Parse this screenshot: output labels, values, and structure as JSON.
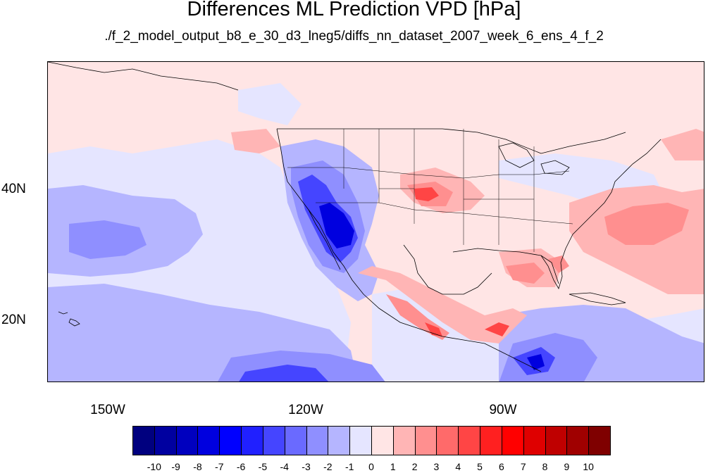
{
  "title": "Differences ML Prediction VPD [hPa]",
  "subtitle": "./f_2_model_output_b8_e_30_d3_lneg5/diffs_nn_dataset_2007_week_6_ens_4_f_2",
  "map": {
    "projection": "cylindrical equidistant",
    "lon_range": [
      -159,
      -60
    ],
    "lat_range": [
      10,
      59
    ],
    "lat_labels": [
      "40N",
      "20N"
    ],
    "lon_labels": [
      "150W",
      "120W",
      "90W"
    ],
    "background_color": "#ffe5e5"
  },
  "colorbar": {
    "labels": [
      "-10",
      "-9",
      "-8",
      "-7",
      "-6",
      "-5",
      "-4",
      "-3",
      "-2",
      "-1",
      "0",
      "1",
      "2",
      "3",
      "4",
      "5",
      "6",
      "7",
      "8",
      "9",
      "10"
    ],
    "colors": [
      "#00007f",
      "#0000a0",
      "#0000bf",
      "#0000df",
      "#0000ff",
      "#2020ff",
      "#4545ff",
      "#6a6aff",
      "#8f8fff",
      "#b5b5ff",
      "#e5e5ff",
      "#ffe5e5",
      "#ffb5b5",
      "#ff8f8f",
      "#ff6a6a",
      "#ff4545",
      "#ff2020",
      "#ff0000",
      "#df0000",
      "#bf0000",
      "#a00000",
      "#7f0000"
    ]
  }
}
